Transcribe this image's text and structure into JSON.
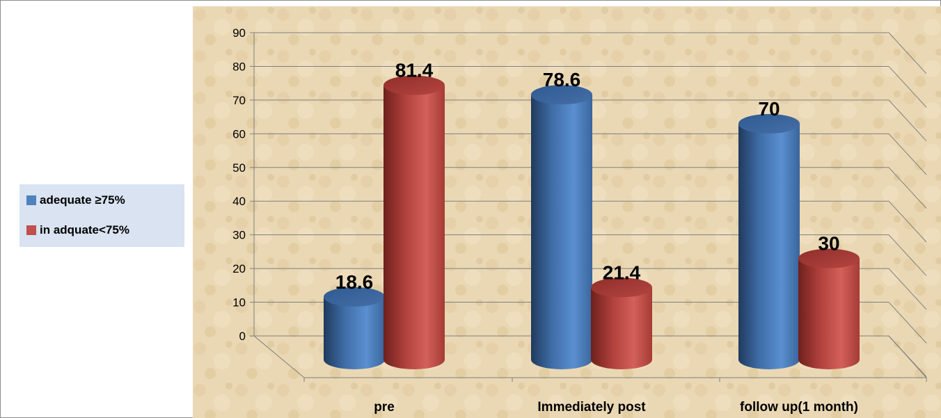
{
  "chart_data": {
    "type": "bar",
    "categories": [
      "pre",
      "Immediately post",
      "follow up(1 month)"
    ],
    "series": [
      {
        "name": "adequate ≥75%",
        "values": [
          18.6,
          78.6,
          70
        ],
        "color": "#4f81bd"
      },
      {
        "name": "in adquate<75%",
        "values": [
          81.4,
          21.4,
          30
        ],
        "color": "#c0504d"
      }
    ],
    "data_labels": [
      [
        "18.6",
        "78.6",
        "70"
      ],
      [
        "81.4",
        "21.4",
        "30"
      ]
    ],
    "y_ticks": [
      "0",
      "10",
      "20",
      "30",
      "40",
      "50",
      "60",
      "70",
      "80",
      "90"
    ],
    "ylim": [
      0,
      90
    ],
    "grid": true,
    "legend_position": "left",
    "style": "3d-cylinder",
    "background": "parchment"
  }
}
